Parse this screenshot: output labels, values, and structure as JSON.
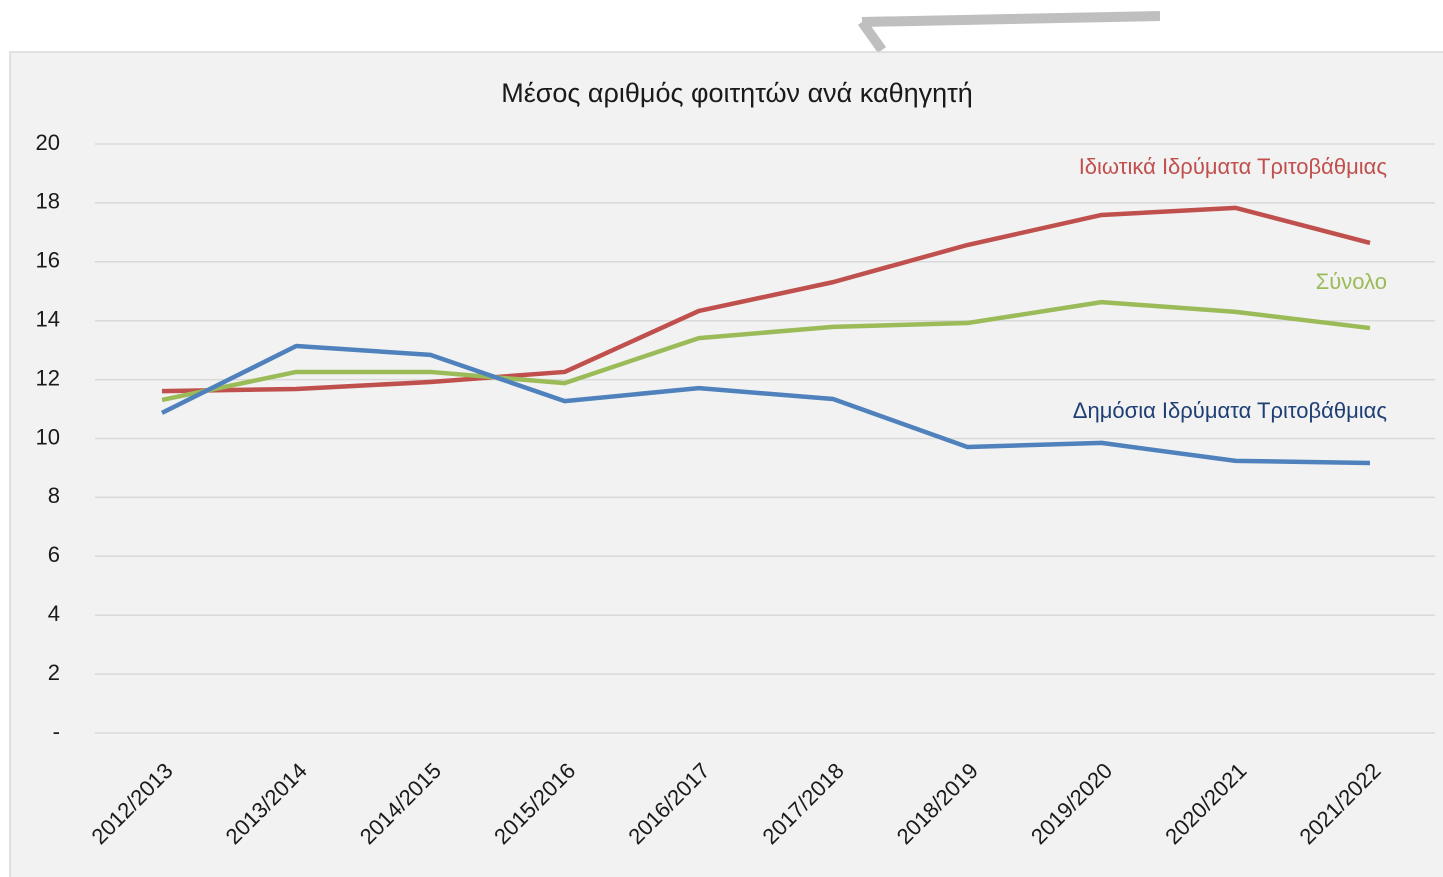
{
  "chart_data": {
    "type": "line",
    "title": "Μέσος αριθμός φοιτητών ανά καθηγητή",
    "categories": [
      "2012/2013",
      "2013/2014",
      "2014/2015",
      "2015/2016",
      "2016/2017",
      "2017/2018",
      "2018/2019",
      "2019/2020",
      "2020/2021",
      "2021/2022"
    ],
    "series": [
      {
        "name": "Ιδιωτικά Ιδρύματα Τριτοβάθμιας",
        "color": "#c0504d",
        "label_color": "#c0504d",
        "values": [
          11.61,
          11.68,
          11.92,
          12.26,
          14.33,
          15.31,
          16.57,
          17.59,
          17.83,
          16.64
        ]
      },
      {
        "name": "Σύνολο",
        "color": "#9bbb59",
        "label_color": "#9bbb59",
        "values": [
          11.31,
          12.26,
          12.26,
          11.88,
          13.41,
          13.79,
          13.92,
          14.63,
          14.3,
          13.75
        ]
      },
      {
        "name": "Δημόσια Ιδρύματα Τριτοβάθμιας",
        "color": "#4f81bd",
        "label_color": "#1f3f74",
        "values": [
          10.87,
          13.14,
          12.84,
          11.27,
          11.71,
          11.34,
          9.71,
          9.85,
          9.24,
          9.17
        ]
      }
    ],
    "ylim": [
      0,
      20
    ],
    "yticks": [
      {
        "value": 0,
        "label": "-"
      },
      2,
      4,
      6,
      8,
      10,
      12,
      14,
      16,
      18,
      20
    ],
    "grid": true
  }
}
